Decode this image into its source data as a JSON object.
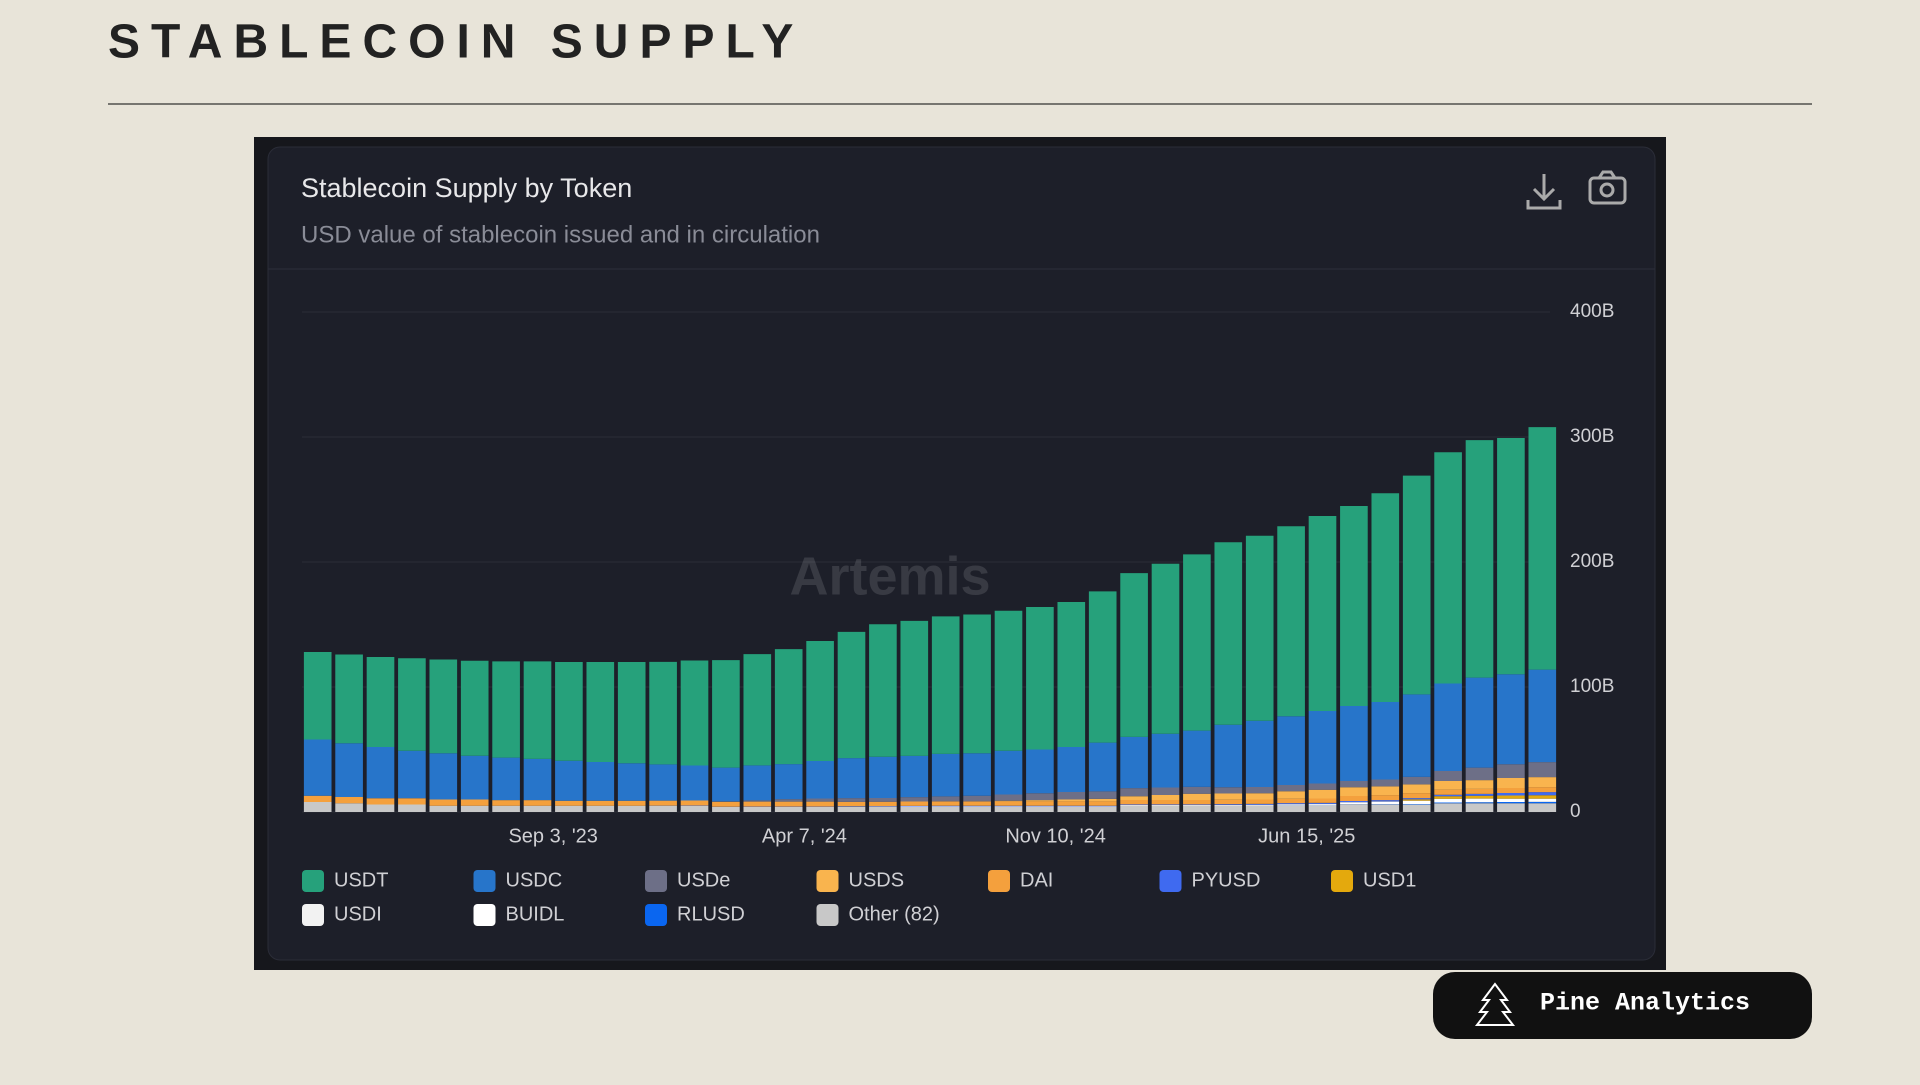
{
  "header": {
    "title": "STABLECOIN SUPPLY"
  },
  "chart_data": {
    "type": "stacked-bar",
    "title": "Stablecoin Supply by Token",
    "subtitle": "USD value of stablecoin issued and in circulation",
    "watermark": "Artemis",
    "categories": [
      null,
      null,
      null,
      null,
      null,
      null,
      null,
      null,
      "Sep 3, '23",
      null,
      null,
      null,
      null,
      null,
      null,
      null,
      "Apr 7, '24",
      null,
      null,
      null,
      null,
      null,
      null,
      null,
      "Nov 10, '24",
      null,
      null,
      null,
      null,
      null,
      null,
      null,
      "Jun 15, '25",
      null,
      null,
      null,
      null,
      null,
      null,
      null
    ],
    "ylim": [
      0,
      400
    ],
    "yticks": [
      0,
      {
        "value": 100,
        "label": "100B"
      },
      {
        "value": 200,
        "label": "200B"
      },
      {
        "value": 300,
        "label": "300B"
      },
      {
        "value": 400,
        "label": "400B"
      }
    ],
    "grid": true,
    "series": [
      {
        "name": "USDT",
        "color": "#26a17b",
        "values": [
          70,
          71,
          72,
          74,
          75,
          76,
          77,
          78,
          79,
          80,
          81,
          82,
          84,
          86,
          89,
          92,
          96,
          101,
          106,
          108,
          110,
          111,
          112,
          114,
          116,
          121,
          131,
          136,
          141,
          146,
          148,
          152,
          156,
          160,
          167,
          175,
          185,
          190,
          189,
          194
        ]
      },
      {
        "name": "USDC",
        "color": "#2775ca",
        "values": [
          45,
          43,
          41,
          38,
          37,
          35,
          34,
          33,
          32,
          31,
          30,
          29,
          28,
          27,
          28,
          28,
          30,
          32,
          33,
          33,
          34,
          34,
          35,
          35,
          36,
          39,
          41,
          43,
          45,
          50,
          53,
          55,
          58,
          60,
          62,
          66,
          70,
          72,
          72,
          74
        ]
      },
      {
        "name": "USDe",
        "color": "#6d6f87",
        "values": [
          0,
          0,
          0,
          0,
          0,
          0,
          0,
          0,
          0,
          0,
          0,
          0,
          0,
          0.3,
          1,
          2,
          2.5,
          3,
          3,
          3.5,
          4,
          4.5,
          5,
          5.5,
          6,
          6,
          6.5,
          6,
          5.5,
          5,
          5,
          5,
          5,
          5,
          5.5,
          6,
          8,
          10,
          11,
          12
        ]
      },
      {
        "name": "USDS",
        "color": "#f9b44e",
        "values": [
          0,
          0,
          0,
          0,
          0,
          0,
          0,
          0,
          0,
          0,
          0,
          0,
          0,
          0,
          0,
          0,
          0,
          0,
          0,
          0,
          0,
          0,
          0.5,
          1,
          1.5,
          2,
          3,
          4,
          5,
          5,
          5,
          6,
          7,
          7,
          7,
          7,
          7,
          7,
          8,
          8
        ]
      },
      {
        "name": "DAI",
        "color": "#f4a03d",
        "values": [
          5,
          5,
          5,
          5,
          5,
          5,
          4.5,
          4.5,
          4,
          4,
          4,
          4,
          4,
          4,
          4,
          4,
          4,
          3.5,
          3.5,
          3.5,
          3.5,
          3.5,
          3.5,
          3.5,
          3.5,
          3.5,
          3.5,
          3.5,
          3.5,
          3.5,
          3.5,
          3.5,
          3.5,
          4,
          4,
          4,
          4,
          4,
          4,
          4
        ]
      },
      {
        "name": "PYUSD",
        "color": "#3f6af0",
        "values": [
          0,
          0,
          0,
          0,
          0,
          0,
          0,
          0,
          0,
          0,
          0,
          0.1,
          0.2,
          0.2,
          0.3,
          0.3,
          0.3,
          0.4,
          0.4,
          0.5,
          0.5,
          0.5,
          0.5,
          0.5,
          0.5,
          0.5,
          0.5,
          0.5,
          0.5,
          0.6,
          0.7,
          0.8,
          0.8,
          0.9,
          1,
          1,
          1.2,
          1.5,
          2,
          2.5
        ]
      },
      {
        "name": "USD1",
        "color": "#e4a90d",
        "values": [
          0,
          0,
          0,
          0,
          0,
          0,
          0,
          0,
          0,
          0,
          0,
          0,
          0,
          0,
          0,
          0,
          0,
          0,
          0,
          0,
          0,
          0,
          0,
          0,
          0,
          0,
          0,
          0,
          0,
          0,
          0,
          0,
          0,
          0,
          0,
          1,
          2,
          2.2,
          2.5,
          2.7
        ]
      },
      {
        "name": "USDI",
        "color": "#f2f2f2",
        "values": [
          0,
          0,
          0,
          0,
          0,
          0,
          0,
          0,
          0,
          0,
          0,
          0,
          0,
          0,
          0,
          0,
          0,
          0,
          0,
          0,
          0,
          0,
          0,
          0,
          0,
          0,
          0,
          0,
          0,
          0,
          0,
          0.2,
          0.2,
          0.2,
          0.2,
          0.2,
          0.2,
          0.2,
          0.2,
          0.2
        ]
      },
      {
        "name": "BUIDL",
        "color": "#ffffff",
        "values": [
          0,
          0,
          0,
          0,
          0,
          0,
          0,
          0,
          0,
          0,
          0,
          0,
          0,
          0,
          0,
          0,
          0,
          0.2,
          0.3,
          0.4,
          0.5,
          0.5,
          0.5,
          0.5,
          0.5,
          0.5,
          0.6,
          0.6,
          0.6,
          0.7,
          0.8,
          1,
          1.2,
          1.5,
          2,
          2.5,
          2.8,
          2.8,
          2.5,
          2.4
        ]
      },
      {
        "name": "RLUSD",
        "color": "#0a66f0",
        "values": [
          0,
          0,
          0,
          0,
          0,
          0,
          0,
          0,
          0,
          0,
          0,
          0,
          0,
          0,
          0,
          0,
          0,
          0,
          0,
          0,
          0,
          0,
          0,
          0,
          0,
          0,
          0,
          0,
          0,
          0,
          0,
          0.1,
          0.1,
          0.2,
          0.3,
          0.4,
          0.6,
          0.8,
          1,
          1.1
        ]
      },
      {
        "name": "Other (82)",
        "color": "#c8c8c8",
        "values": [
          8,
          7,
          6,
          6,
          5,
          5,
          5,
          5,
          5,
          5,
          5,
          5,
          5,
          4,
          4,
          4,
          4,
          4,
          4,
          4,
          4,
          4,
          4,
          4,
          4,
          4,
          5,
          5,
          5,
          5,
          5,
          5,
          5,
          6,
          6,
          6,
          7,
          7,
          7,
          7
        ]
      }
    ]
  },
  "badge": {
    "label": "Pine Analytics"
  }
}
